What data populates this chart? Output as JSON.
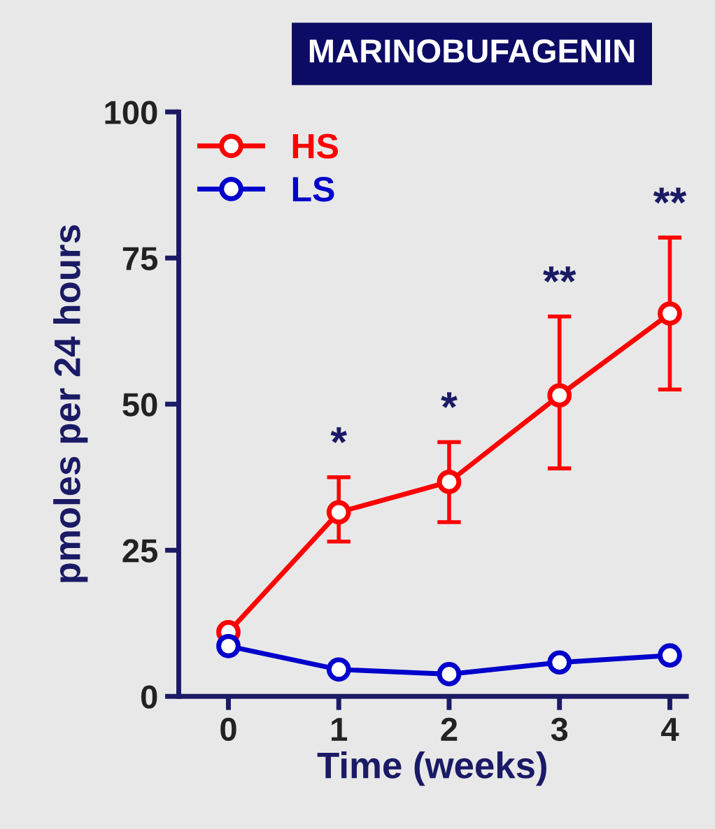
{
  "chart_data": {
    "type": "line",
    "title": "MARINOBUFAGENIN",
    "xlabel": "Time (weeks)",
    "ylabel": "pmoles per 24 hours",
    "x": [
      0,
      1,
      2,
      3,
      4
    ],
    "xlim": [
      -0.45,
      4.15
    ],
    "xticks": [
      0,
      1,
      2,
      3,
      4
    ],
    "ylim": [
      0,
      100
    ],
    "yticks": [
      0,
      25,
      50,
      75,
      100
    ],
    "marker": "circle",
    "legend": "top left",
    "grid": false,
    "series": [
      {
        "name": "HS",
        "color": "#ff0000",
        "values": [
          11,
          31.5,
          36.7,
          51.5,
          65.5
        ],
        "errors": [
          null,
          [
            26.5,
            37.5
          ],
          [
            29.8,
            43.5
          ],
          [
            39,
            65
          ],
          [
            52.5,
            78.5
          ]
        ]
      },
      {
        "name": "LS",
        "color": "#0000cc",
        "values": [
          8.6,
          4.6,
          3.8,
          5.8,
          7
        ]
      }
    ],
    "annotations": [
      {
        "text": "*",
        "x": 1,
        "y": 37.5
      },
      {
        "text": "*",
        "x": 2,
        "y": 43.5
      },
      {
        "text": "**",
        "x": 3,
        "y": 65
      },
      {
        "text": "**",
        "x": 4,
        "y": 78.5
      }
    ]
  }
}
